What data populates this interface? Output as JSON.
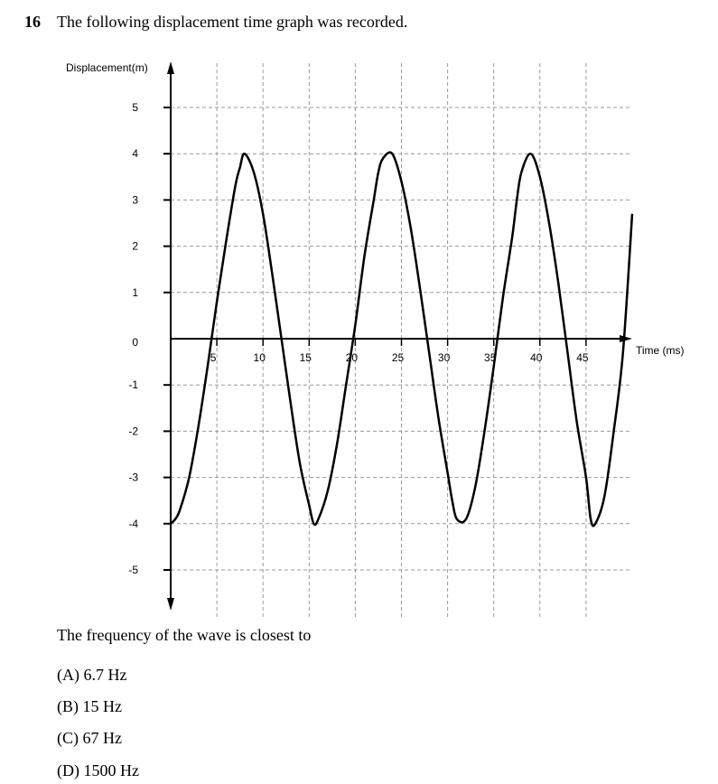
{
  "question": {
    "number": "16",
    "text": "The following displacement time graph was recorded.",
    "stem": "The frequency of the wave is closest to",
    "options": [
      "(A) 6.7 Hz",
      "(B) 15 Hz",
      "(C) 67 Hz",
      "(D) 1500 Hz"
    ]
  },
  "chart_data": {
    "type": "line",
    "title": "",
    "xlabel": "Time (ms)",
    "ylabel": "Displacement(m)",
    "xlim": [
      0,
      50
    ],
    "ylim": [
      -6,
      6
    ],
    "x_ticks": [
      5,
      10,
      15,
      20,
      25,
      30,
      35,
      40,
      45
    ],
    "y_ticks": [
      5,
      4,
      3,
      2,
      1,
      0,
      -1,
      -2,
      -3,
      -4,
      -5
    ],
    "grid": true,
    "grid_style": "dashed",
    "series": [
      {
        "x": [
          0,
          0.5,
          1,
          2,
          3,
          4,
          5,
          6,
          7,
          7.5,
          8,
          9,
          10,
          11,
          12,
          13,
          14,
          15,
          15.5,
          16,
          17,
          18,
          19,
          20,
          21,
          22,
          22.5,
          23,
          24,
          25,
          26,
          27,
          28,
          29,
          30,
          30.5,
          31,
          32,
          33,
          34,
          35,
          36,
          37,
          37.5,
          38,
          39,
          40,
          41,
          42,
          43,
          44,
          45,
          45.5,
          46,
          47,
          48,
          49,
          50
        ],
        "y": [
          -4,
          -3.9,
          -3.7,
          -3,
          -1.9,
          -0.6,
          0.8,
          2.1,
          3.3,
          3.7,
          4,
          3.6,
          2.7,
          1.4,
          0,
          -1.4,
          -2.7,
          -3.6,
          -4,
          -3.9,
          -3.3,
          -2.3,
          -1,
          0.3,
          1.8,
          3,
          3.6,
          3.9,
          4,
          3.4,
          2.4,
          1.1,
          -0.3,
          -1.7,
          -2.9,
          -3.5,
          -3.9,
          -3.9,
          -3.2,
          -2,
          -0.6,
          0.9,
          2.2,
          3,
          3.6,
          4,
          3.5,
          2.5,
          1.2,
          -0.3,
          -1.8,
          -3,
          -3.9,
          -4,
          -3.4,
          -2,
          -0.3,
          2.7
        ],
        "color": "#000000"
      }
    ]
  }
}
